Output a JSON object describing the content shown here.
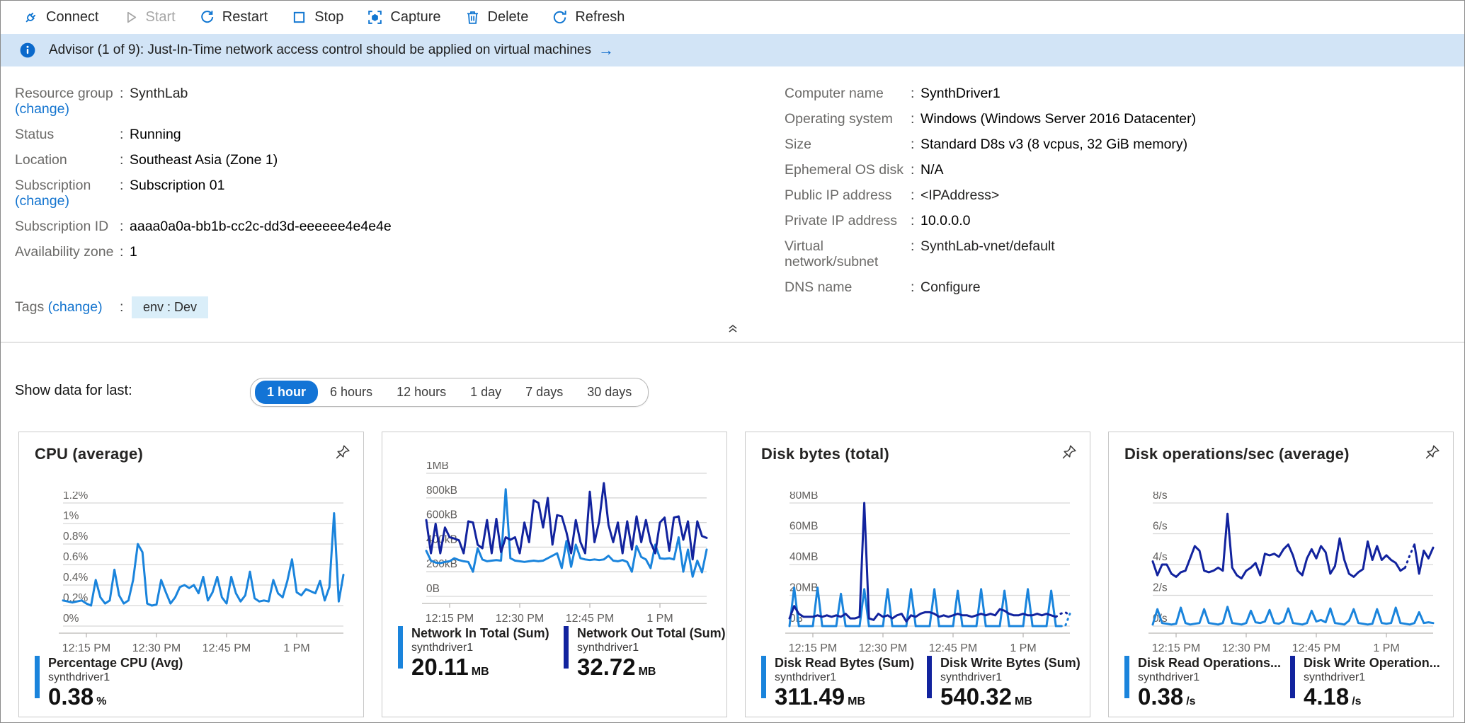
{
  "colors": {
    "accent_blue": "#1374d6",
    "link_blue": "#1374cf",
    "toolbar_icon_blue": "#1076d1",
    "disabled_gray": "#a6a6a6",
    "banner_bg": "#d2e4f6",
    "info_icon_blue": "#0b69cb",
    "tag_bg": "#daeef9",
    "light_series": "#1a84dc",
    "dark_series": "#12239e",
    "gridline": "#d6d6d6",
    "axis_text": "#605e5c"
  },
  "toolbar": {
    "buttons": [
      {
        "label": "Connect",
        "icon": "connect",
        "enabled": true
      },
      {
        "label": "Start",
        "icon": "start",
        "enabled": false
      },
      {
        "label": "Restart",
        "icon": "restart",
        "enabled": true
      },
      {
        "label": "Stop",
        "icon": "stop",
        "enabled": true
      },
      {
        "label": "Capture",
        "icon": "capture",
        "enabled": true
      },
      {
        "label": "Delete",
        "icon": "delete",
        "enabled": true
      },
      {
        "label": "Refresh",
        "icon": "refresh",
        "enabled": true
      }
    ]
  },
  "banner": {
    "text": "Advisor (1 of 9): Just-In-Time network access control should be applied on virtual machines",
    "arrow": "→"
  },
  "details": {
    "change_label": "(change)",
    "left": [
      {
        "label": "Resource group",
        "change": true,
        "value": "SynthLab",
        "link": true
      },
      {
        "label": "Status",
        "value": "Running"
      },
      {
        "label": "Location",
        "value": "Southeast Asia (Zone 1)"
      },
      {
        "label": "Subscription",
        "change": true,
        "value": "Subscription 01"
      },
      {
        "label": "Subscription ID",
        "value": "aaaa0a0a-bb1b-cc2c-dd3d-eeeeee4e4e4e"
      },
      {
        "label": "Availability zone",
        "value": "1"
      }
    ],
    "right": [
      {
        "label": "Computer name",
        "value": "SynthDriver1"
      },
      {
        "label": "Operating system",
        "value": "Windows (Windows Server 2016 Datacenter)"
      },
      {
        "label": "Size",
        "value": "Standard D8s v3 (8 vcpus, 32 GiB memory)"
      },
      {
        "label": "Ephemeral OS disk",
        "value": "N/A"
      },
      {
        "label": "Public IP address",
        "value": "<IPAddress>",
        "link": true
      },
      {
        "label": "Private IP address",
        "value": "10.0.0.0"
      },
      {
        "label": "Virtual network/subnet",
        "value": "SynthLab-vnet/default",
        "link": true
      },
      {
        "label": "DNS name",
        "value": "Configure",
        "link": true
      }
    ],
    "tags": {
      "label": "Tags",
      "change": true,
      "value": "env : Dev"
    }
  },
  "time_range": {
    "label": "Show data for last:",
    "options": [
      "1 hour",
      "6 hours",
      "12 hours",
      "1 day",
      "7 days",
      "30 days"
    ],
    "selected": "1 hour"
  },
  "chart_data": [
    {
      "type": "line",
      "title": "CPU (average)",
      "pinned": true,
      "y_ticks": [
        "1.2%",
        "1%",
        "0.8%",
        "0.6%",
        "0.4%",
        "0.2%",
        "0%"
      ],
      "ymax": 1.2,
      "x_ticks": [
        "12:15 PM",
        "12:30 PM",
        "12:45 PM",
        "1 PM"
      ],
      "x_tick_indices": [
        5,
        20,
        35,
        50
      ],
      "layout": {
        "svg_top": 84,
        "legend_top": 316
      },
      "series": [
        {
          "name": "Percentage CPU (Avg)",
          "resource": "synthdriver1",
          "value": "0.38",
          "unit": "%",
          "color": "light",
          "values": [
            0.25,
            0.24,
            0.23,
            0.24,
            0.25,
            0.22,
            0.2,
            0.45,
            0.28,
            0.22,
            0.25,
            0.55,
            0.3,
            0.22,
            0.25,
            0.45,
            0.8,
            0.72,
            0.22,
            0.2,
            0.21,
            0.45,
            0.33,
            0.22,
            0.28,
            0.38,
            0.4,
            0.37,
            0.4,
            0.32,
            0.48,
            0.25,
            0.33,
            0.48,
            0.28,
            0.22,
            0.48,
            0.32,
            0.24,
            0.3,
            0.53,
            0.27,
            0.24,
            0.25,
            0.24,
            0.45,
            0.32,
            0.28,
            0.44,
            0.65,
            0.33,
            0.3,
            0.36,
            0.34,
            0.32,
            0.44,
            0.25,
            0.38,
            1.1,
            0.24,
            0.5
          ]
        }
      ]
    },
    {
      "type": "line",
      "title": "",
      "pinned": false,
      "y_ticks": [
        "1MB",
        "800kB",
        "600kB",
        "400kB",
        "200kB",
        "0B"
      ],
      "ymax": 1000,
      "x_ticks": [
        "12:15 PM",
        "12:30 PM",
        "12:45 PM",
        "1 PM"
      ],
      "x_tick_indices": [
        5,
        20,
        35,
        50
      ],
      "layout": {
        "svg_top": 42,
        "legend_top": 274
      },
      "series": [
        {
          "name": "Network In Total (Sum)",
          "resource": "synthdriver1",
          "value": "20.11",
          "unit": "MB",
          "color": "light",
          "values": [
            370,
            290,
            275,
            270,
            280,
            285,
            310,
            295,
            285,
            280,
            200,
            390,
            300,
            285,
            290,
            295,
            290,
            870,
            310,
            290,
            285,
            280,
            285,
            290,
            285,
            290,
            310,
            330,
            350,
            230,
            450,
            240,
            420,
            310,
            300,
            295,
            300,
            295,
            300,
            330,
            290,
            285,
            295,
            280,
            200,
            410,
            320,
            300,
            230,
            420,
            310,
            305,
            310,
            300,
            480,
            200,
            380,
            160,
            290,
            195,
            380
          ]
        },
        {
          "name": "Network Out Total (Sum)",
          "resource": "synthdriver1",
          "value": "32.72",
          "unit": "MB",
          "color": "dark",
          "values": [
            620,
            350,
            590,
            350,
            560,
            480,
            470,
            455,
            350,
            610,
            600,
            420,
            390,
            620,
            350,
            630,
            360,
            480,
            460,
            480,
            350,
            600,
            440,
            780,
            760,
            560,
            800,
            420,
            660,
            650,
            520,
            350,
            620,
            440,
            350,
            850,
            440,
            610,
            920,
            580,
            440,
            600,
            350,
            610,
            380,
            650,
            440,
            620,
            440,
            350,
            600,
            640,
            370,
            640,
            650,
            460,
            610,
            300,
            610,
            490,
            475
          ]
        }
      ]
    },
    {
      "type": "line",
      "title": "Disk bytes (total)",
      "pinned": true,
      "y_ticks": [
        "80MB",
        "60MB",
        "40MB",
        "20MB",
        "0B"
      ],
      "ymax": 80,
      "x_ticks": [
        "12:15 PM",
        "12:30 PM",
        "12:45 PM",
        "1 PM"
      ],
      "x_tick_indices": [
        5,
        20,
        35,
        50
      ],
      "layout": {
        "svg_top": 84,
        "legend_top": 316
      },
      "series": [
        {
          "name": "Disk Read Bytes (Sum)",
          "resource": "synthdriver1",
          "value": "311.49",
          "unit": "MB",
          "color": "light",
          "dash": [
            58,
            60
          ],
          "values": [
            0,
            25,
            0,
            0,
            0,
            0,
            25,
            0,
            0,
            0,
            0,
            21,
            0,
            0,
            0,
            0,
            24,
            0,
            0,
            0,
            0,
            24,
            0,
            0,
            0,
            0,
            24,
            0,
            0,
            0,
            0,
            24,
            0,
            0,
            0,
            0,
            23,
            0,
            0,
            0,
            0,
            24,
            0,
            0,
            0,
            0,
            23,
            0,
            0,
            0,
            0,
            24,
            0,
            0,
            0,
            0,
            23,
            0,
            0,
            0,
            8
          ]
        },
        {
          "name": "Disk Write Bytes (Sum)",
          "resource": "synthdriver1",
          "value": "540.32",
          "unit": "MB",
          "color": "dark",
          "dash": [
            57,
            60
          ],
          "values": [
            5,
            13,
            8,
            6,
            6,
            6,
            7,
            6,
            7,
            6,
            7,
            6,
            8,
            5,
            5,
            6,
            80,
            5,
            4,
            8,
            6,
            7,
            5,
            7,
            8,
            3,
            7,
            6,
            8,
            9,
            9,
            8,
            6,
            7,
            6,
            7,
            8,
            7,
            7,
            6,
            7,
            8,
            7,
            8,
            7,
            11,
            10,
            8,
            7,
            7,
            8,
            7,
            7,
            8,
            7,
            8,
            7,
            6,
            8,
            9,
            7
          ]
        }
      ]
    },
    {
      "type": "line",
      "title": "Disk operations/sec (average)",
      "pinned": true,
      "y_ticks": [
        "8/s",
        "6/s",
        "4/s",
        "2/s",
        "0/s"
      ],
      "ymax": 8,
      "x_ticks": [
        "12:15 PM",
        "12:30 PM",
        "12:45 PM",
        "1 PM"
      ],
      "x_tick_indices": [
        5,
        20,
        35,
        50
      ],
      "layout": {
        "svg_top": 84,
        "legend_top": 316
      },
      "series": [
        {
          "name": "Disk Read Operations...",
          "resource": "synthdriver1",
          "value": "0.38",
          "unit": "/s",
          "color": "light",
          "values": [
            0.1,
            1.1,
            0.2,
            0.15,
            0.1,
            0.15,
            1.2,
            0.2,
            0.1,
            0.15,
            0.2,
            1.1,
            0.2,
            0.15,
            0.1,
            0.2,
            1.25,
            0.2,
            0.15,
            0.1,
            0.2,
            1.0,
            0.25,
            0.2,
            0.3,
            1.05,
            0.2,
            0.15,
            0.3,
            1.15,
            0.2,
            0.15,
            0.1,
            0.2,
            1.0,
            0.3,
            0.4,
            0.25,
            1.15,
            0.2,
            0.15,
            0.1,
            0.35,
            1.1,
            0.2,
            0.15,
            0.1,
            0.15,
            1.1,
            0.2,
            0.15,
            0.2,
            1.2,
            0.2,
            0.15,
            0.1,
            0.2,
            0.9,
            0.2,
            0.25,
            0.2
          ]
        },
        {
          "name": "Disk Write Operation...",
          "resource": "synthdriver1",
          "value": "4.18",
          "unit": "/s",
          "color": "dark",
          "dash": [
            54,
            56
          ],
          "values": [
            4.2,
            3.3,
            4.0,
            4.0,
            3.4,
            3.2,
            3.5,
            3.6,
            4.4,
            5.2,
            4.9,
            3.6,
            3.5,
            3.6,
            3.8,
            3.6,
            7.3,
            3.8,
            3.3,
            3.1,
            3.6,
            3.8,
            4.1,
            3.3,
            4.7,
            4.6,
            4.7,
            4.5,
            5.0,
            5.3,
            4.6,
            3.6,
            3.3,
            4.4,
            5.0,
            4.4,
            5.2,
            4.8,
            3.4,
            3.9,
            5.7,
            4.3,
            3.4,
            3.2,
            3.5,
            3.7,
            5.5,
            4.3,
            5.2,
            4.3,
            4.6,
            4.3,
            4.1,
            3.6,
            3.8,
            4.6,
            5.3,
            3.4,
            4.9,
            4.4,
            5.1
          ]
        }
      ]
    }
  ]
}
